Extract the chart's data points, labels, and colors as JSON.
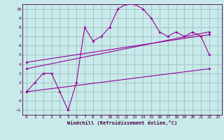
{
  "xlabel": "Windchill (Refroidissement éolien,°C)",
  "bg_color": "#c8eaea",
  "grid_color": "#9ab8b8",
  "line_color": "#990099",
  "xlim": [
    -0.5,
    23.5
  ],
  "ylim": [
    -1.5,
    10.5
  ],
  "xticks": [
    0,
    1,
    2,
    3,
    4,
    5,
    6,
    7,
    8,
    9,
    10,
    11,
    12,
    13,
    14,
    15,
    16,
    17,
    18,
    19,
    20,
    21,
    22,
    23
  ],
  "yticks": [
    -1,
    0,
    1,
    2,
    3,
    4,
    5,
    6,
    7,
    8,
    9,
    10
  ],
  "data_x": [
    0,
    1,
    2,
    3,
    4,
    5,
    6,
    7,
    8,
    9,
    10,
    11,
    12,
    13,
    14,
    15,
    16,
    17,
    18,
    19,
    20,
    21,
    22
  ],
  "data_y": [
    1,
    2,
    3,
    3,
    1,
    -1,
    2,
    8,
    6.5,
    7,
    8,
    10,
    10.5,
    10.5,
    10,
    9,
    7.5,
    7,
    7.5,
    7,
    7.5,
    7,
    5
  ],
  "line1_x": [
    0,
    22
  ],
  "line1_y": [
    1.0,
    3.5
  ],
  "line2_x": [
    0,
    22
  ],
  "line2_y": [
    3.5,
    7.5
  ],
  "line3_x": [
    0,
    22
  ],
  "line3_y": [
    4.2,
    7.2
  ]
}
